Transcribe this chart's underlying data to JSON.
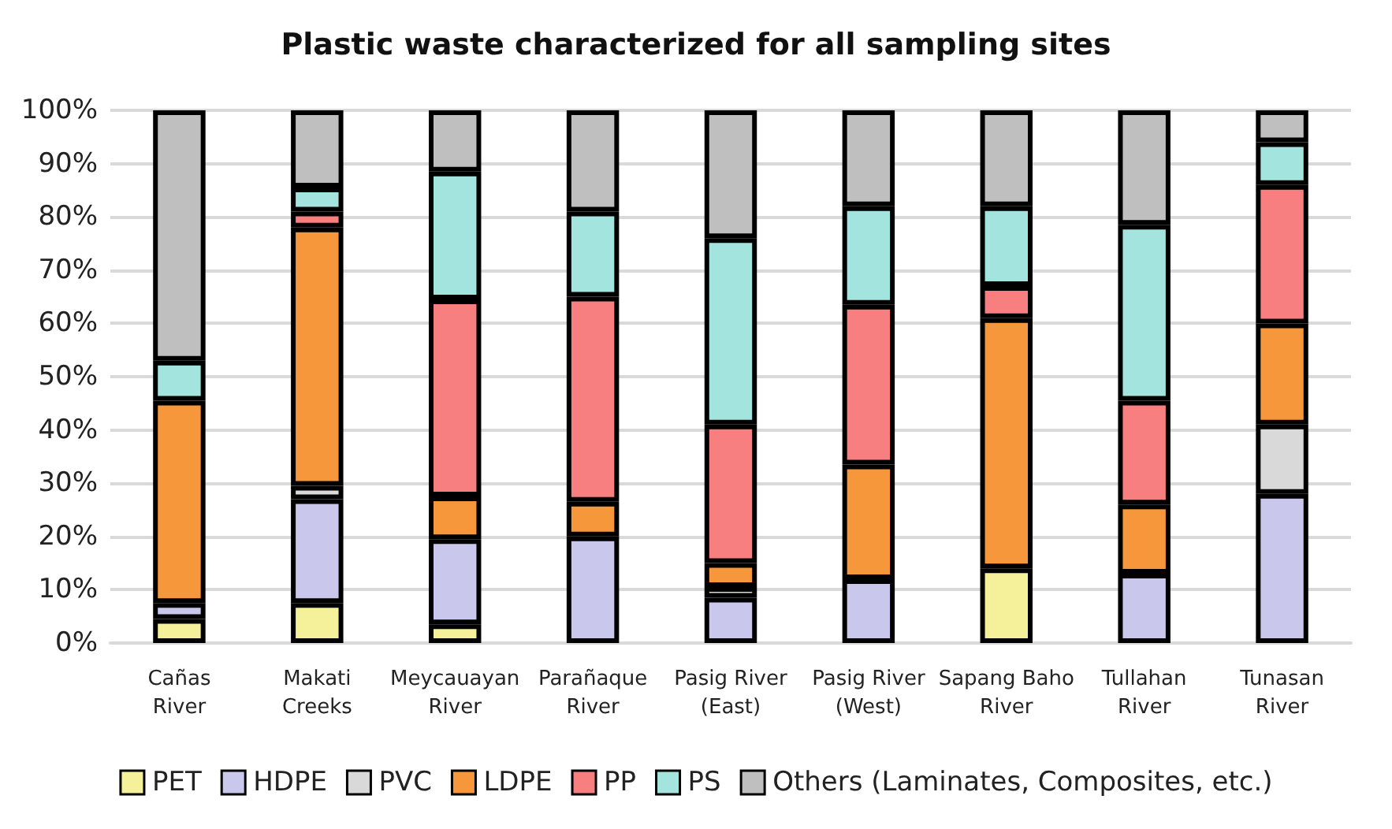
{
  "chart_data": {
    "type": "bar",
    "stacked": true,
    "title": "Plastic waste characterized for all sampling sites",
    "categories": [
      "Cañas\nRiver",
      "Makati\nCreeks",
      "Meycauayan\nRiver",
      "Parañaque\nRiver",
      "Pasig River\n(East)",
      "Pasig River\n(West)",
      "Sapang Baho\nRiver",
      "Tullahan\nRiver",
      "Tunasan\nRiver"
    ],
    "series": [
      {
        "name": "PET",
        "color": "#f5f09a",
        "values": [
          4.5,
          7.5,
          3.5,
          0,
          0,
          0,
          14,
          0,
          0
        ]
      },
      {
        "name": "HDPE",
        "color": "#c9c8ec",
        "values": [
          3,
          19.5,
          16,
          20,
          8.5,
          12,
          0,
          13,
          28
        ]
      },
      {
        "name": "PVC",
        "color": "#d9d9d9",
        "values": [
          0,
          2.5,
          0,
          0,
          2,
          0,
          0,
          0,
          13
        ]
      },
      {
        "name": "LDPE",
        "color": "#f5973a",
        "values": [
          38,
          48.5,
          8,
          6.5,
          4.5,
          21.5,
          47,
          13,
          19
        ]
      },
      {
        "name": "PP",
        "color": "#f77f80",
        "values": [
          0,
          3,
          37,
          38.5,
          26,
          30,
          6,
          19.5,
          26
        ]
      },
      {
        "name": "PS",
        "color": "#a3e4df",
        "values": [
          7.5,
          4.5,
          24,
          16,
          35,
          18.5,
          15,
          33,
          8
        ]
      },
      {
        "name": "Others (Laminates, Composites, etc.)",
        "color": "#bfbfbf",
        "values": [
          47,
          14.5,
          11.5,
          19,
          24,
          18,
          18,
          21.5,
          6
        ]
      }
    ],
    "ylim": [
      0,
      100
    ],
    "yticks": [
      {
        "value": 0,
        "label": "0%"
      },
      {
        "value": 10,
        "label": "10%"
      },
      {
        "value": 20,
        "label": "20%"
      },
      {
        "value": 30,
        "label": "30%"
      },
      {
        "value": 40,
        "label": "40%"
      },
      {
        "value": 50,
        "label": "50%"
      },
      {
        "value": 60,
        "label": "60%"
      },
      {
        "value": 70,
        "label": "70%"
      },
      {
        "value": 80,
        "label": "80%"
      },
      {
        "value": 90,
        "label": "90%"
      },
      {
        "value": 100,
        "label": "100%"
      }
    ],
    "grid": "y",
    "legend": "bottom"
  }
}
